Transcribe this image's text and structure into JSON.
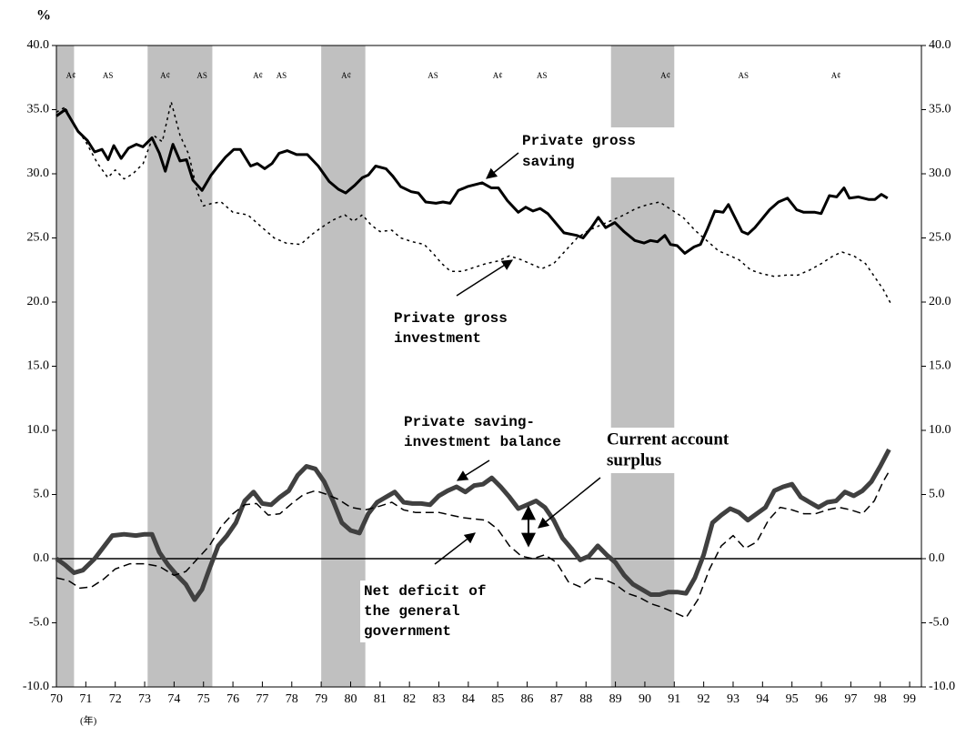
{
  "chart_data": {
    "type": "line",
    "y_unit": "%",
    "x_unit": "(年)",
    "xlim": [
      70,
      99.4
    ],
    "xticks": [
      70,
      71,
      72,
      73,
      74,
      75,
      76,
      77,
      78,
      79,
      80,
      81,
      82,
      83,
      84,
      85,
      86,
      87,
      88,
      89,
      90,
      91,
      92,
      93,
      94,
      95,
      96,
      97,
      98,
      99
    ],
    "ylim": [
      -10,
      40
    ],
    "yticks": [
      {
        "value": -10,
        "label": "-10.0"
      },
      {
        "value": -5,
        "label": "-5.0"
      },
      {
        "value": 0,
        "label": "0.0"
      },
      {
        "value": 5,
        "label": "5.0"
      },
      {
        "value": 10,
        "label": "10.0"
      },
      {
        "value": 15,
        "label": "15.0"
      },
      {
        "value": 20,
        "label": "20.0"
      },
      {
        "value": 25,
        "label": "25.0"
      },
      {
        "value": 30,
        "label": "30.0"
      },
      {
        "value": 35,
        "label": "35.0"
      },
      {
        "value": 40,
        "label": "40.0"
      }
    ],
    "right_axis": true,
    "shaded_periods": [
      [
        70,
        70.6
      ],
      [
        73.1,
        75.3
      ],
      [
        79.0,
        80.5
      ],
      [
        88.85,
        91.0
      ]
    ],
    "shade_color": "#c0c0c0",
    "cycle_labels": [
      {
        "x": 70.5,
        "label": "A¢"
      },
      {
        "x": 71.75,
        "label": "AS"
      },
      {
        "x": 73.7,
        "label": "A¢"
      },
      {
        "x": 74.95,
        "label": "AS"
      },
      {
        "x": 76.85,
        "label": "A¢"
      },
      {
        "x": 77.65,
        "label": "AS"
      },
      {
        "x": 79.85,
        "label": "A¢"
      },
      {
        "x": 82.8,
        "label": "AS"
      },
      {
        "x": 85.0,
        "label": "A¢"
      },
      {
        "x": 86.5,
        "label": "AS"
      },
      {
        "x": 90.7,
        "label": "A¢"
      },
      {
        "x": 93.35,
        "label": "AS"
      },
      {
        "x": 96.5,
        "label": "A¢"
      }
    ],
    "annotations": [
      [
        "Private gross",
        "saving"
      ],
      [
        "Private gross",
        "investment"
      ],
      [
        "Private saving-",
        "investment balance"
      ],
      [
        "Current account",
        "surplus"
      ],
      [
        "Net deficit of",
        "the general",
        "government"
      ]
    ],
    "series": [
      {
        "name": "Private gross saving",
        "color": "#000000",
        "line_style": "solid",
        "line_width": 3,
        "x": [
          70.0,
          70.3,
          70.74,
          71.05,
          71.3,
          71.55,
          71.76,
          71.95,
          72.2,
          72.45,
          72.72,
          72.94,
          73.25,
          73.5,
          73.7,
          73.96,
          74.2,
          74.42,
          74.64,
          74.95,
          75.26,
          75.5,
          75.75,
          76.03,
          76.25,
          76.6,
          76.83,
          77.08,
          77.33,
          77.57,
          77.85,
          78.16,
          78.53,
          78.9,
          79.27,
          79.58,
          79.83,
          80.14,
          80.4,
          80.6,
          80.85,
          81.2,
          81.44,
          81.7,
          82.06,
          82.3,
          82.55,
          82.9,
          83.14,
          83.38,
          83.66,
          83.97,
          84.47,
          84.78,
          85.02,
          85.33,
          85.7,
          85.95,
          86.2,
          86.44,
          86.7,
          87.25,
          87.68,
          87.9,
          88.18,
          88.42,
          88.67,
          88.98,
          89.29,
          89.66,
          89.97,
          90.19,
          90.43,
          90.68,
          90.87,
          91.1,
          91.36,
          91.67,
          91.89,
          92.13,
          92.38,
          92.66,
          92.84,
          93.3,
          93.5,
          93.74,
          94.24,
          94.54,
          94.85,
          95.16,
          95.4,
          95.78,
          95.99,
          96.27,
          96.52,
          96.77,
          96.95,
          97.26,
          97.6,
          97.82,
          98.04,
          98.25
        ],
        "values": [
          34.5,
          35.0,
          33.3,
          32.6,
          31.7,
          31.9,
          31.1,
          32.2,
          31.2,
          32.0,
          32.3,
          32.1,
          32.8,
          31.6,
          30.2,
          32.3,
          31.0,
          31.1,
          29.5,
          28.7,
          29.9,
          30.6,
          31.3,
          31.9,
          31.9,
          30.6,
          30.8,
          30.4,
          30.8,
          31.6,
          31.8,
          31.5,
          31.5,
          30.6,
          29.4,
          28.8,
          28.5,
          29.1,
          29.7,
          29.9,
          30.6,
          30.4,
          29.8,
          29.0,
          28.6,
          28.5,
          27.8,
          27.7,
          27.8,
          27.7,
          28.7,
          29.0,
          29.3,
          28.9,
          28.9,
          27.9,
          27.0,
          27.4,
          27.1,
          27.3,
          26.9,
          25.4,
          25.2,
          25.0,
          25.8,
          26.6,
          25.8,
          26.2,
          25.5,
          24.8,
          24.6,
          24.8,
          24.7,
          25.2,
          24.5,
          24.4,
          23.8,
          24.3,
          24.5,
          25.7,
          27.1,
          27.0,
          27.6,
          25.5,
          25.3,
          25.8,
          27.2,
          27.8,
          28.1,
          27.2,
          27.0,
          27.0,
          26.9,
          28.3,
          28.2,
          28.9,
          28.1,
          28.2,
          28.0,
          28.0,
          28.4,
          28.1
        ]
      },
      {
        "name": "Private gross investment",
        "color": "#000000",
        "line_style": "dotted",
        "line_width": 1.5,
        "x": [
          70.0,
          70.3,
          70.6,
          71.0,
          71.4,
          71.75,
          72.0,
          72.3,
          72.6,
          72.95,
          73.3,
          73.6,
          73.9,
          74.2,
          74.5,
          74.8,
          75.0,
          75.3,
          75.6,
          76.0,
          76.5,
          77.0,
          77.4,
          77.8,
          78.3,
          78.7,
          79.0,
          79.4,
          79.8,
          80.1,
          80.4,
          80.7,
          81.0,
          81.4,
          81.7,
          82.1,
          82.5,
          82.8,
          83.1,
          83.4,
          83.8,
          84.2,
          84.6,
          85.0,
          85.4,
          85.8,
          86.2,
          86.5,
          86.9,
          87.3,
          87.7,
          88.1,
          88.5,
          88.9,
          89.3,
          89.7,
          90.1,
          90.5,
          90.9,
          91.3,
          91.7,
          92.1,
          92.5,
          92.9,
          93.2,
          93.6,
          94.0,
          94.4,
          94.8,
          95.2,
          95.6,
          96.0,
          96.4,
          96.7,
          97.1,
          97.5,
          97.8,
          98.1,
          98.4
        ],
        "values": [
          34.8,
          35.2,
          33.8,
          32.5,
          30.8,
          29.7,
          30.3,
          29.6,
          30.0,
          30.8,
          33.0,
          32.5,
          35.6,
          33.0,
          31.5,
          28.5,
          27.5,
          27.7,
          27.8,
          27.0,
          26.8,
          25.8,
          25.0,
          24.6,
          24.5,
          25.3,
          25.8,
          26.4,
          26.8,
          26.3,
          26.8,
          26.0,
          25.5,
          25.6,
          25.0,
          24.7,
          24.5,
          23.8,
          23.0,
          22.4,
          22.4,
          22.7,
          23.0,
          23.2,
          23.6,
          23.3,
          22.9,
          22.6,
          23.0,
          24.0,
          25.0,
          25.6,
          26.0,
          26.4,
          26.8,
          27.3,
          27.6,
          27.8,
          27.2,
          26.6,
          25.6,
          24.8,
          24.0,
          23.6,
          23.3,
          22.5,
          22.2,
          22.0,
          22.1,
          22.1,
          22.5,
          23.0,
          23.6,
          23.9,
          23.6,
          23.0,
          22.0,
          21.0,
          19.7
        ]
      },
      {
        "name": "Private saving-investment balance",
        "color": "#404040",
        "line_style": "solid",
        "line_width": 5,
        "x": [
          70.0,
          70.3,
          70.6,
          70.9,
          71.3,
          71.6,
          71.9,
          72.3,
          72.7,
          73.0,
          73.25,
          73.5,
          73.8,
          74.1,
          74.4,
          74.7,
          74.95,
          75.2,
          75.5,
          75.8,
          76.1,
          76.4,
          76.7,
          77.0,
          77.3,
          77.6,
          77.9,
          78.2,
          78.5,
          78.8,
          79.1,
          79.4,
          79.7,
          80.0,
          80.3,
          80.6,
          80.9,
          81.2,
          81.5,
          81.8,
          82.1,
          82.4,
          82.7,
          83.0,
          83.3,
          83.6,
          83.9,
          84.2,
          84.5,
          84.8,
          85.1,
          85.4,
          85.7,
          86.0,
          86.3,
          86.6,
          86.9,
          87.2,
          87.5,
          87.8,
          88.1,
          88.4,
          88.7,
          89.0,
          89.3,
          89.6,
          89.9,
          90.2,
          90.5,
          90.8,
          91.1,
          91.4,
          91.7,
          92.0,
          92.3,
          92.6,
          92.9,
          93.2,
          93.5,
          93.8,
          94.1,
          94.4,
          94.7,
          95.0,
          95.3,
          95.6,
          95.9,
          96.2,
          96.5,
          96.8,
          97.1,
          97.4,
          97.7,
          98.0,
          98.3
        ],
        "values": [
          0.0,
          -0.5,
          -1.1,
          -0.9,
          0.0,
          0.9,
          1.8,
          1.9,
          1.8,
          1.9,
          1.9,
          0.5,
          -0.5,
          -1.3,
          -2.0,
          -3.2,
          -2.4,
          -0.8,
          1.0,
          1.8,
          2.8,
          4.5,
          5.2,
          4.3,
          4.2,
          4.8,
          5.3,
          6.5,
          7.2,
          7.0,
          6.0,
          4.5,
          2.8,
          2.2,
          2.0,
          3.5,
          4.4,
          4.8,
          5.2,
          4.4,
          4.3,
          4.3,
          4.2,
          4.9,
          5.3,
          5.6,
          5.2,
          5.7,
          5.8,
          6.3,
          5.6,
          4.8,
          3.9,
          4.2,
          4.5,
          4.0,
          3.0,
          1.6,
          0.8,
          -0.1,
          0.2,
          1.0,
          0.3,
          -0.3,
          -1.3,
          -2.0,
          -2.4,
          -2.8,
          -2.8,
          -2.6,
          -2.6,
          -2.7,
          -1.5,
          0.3,
          2.8,
          3.4,
          3.9,
          3.6,
          3.0,
          3.5,
          4.0,
          5.3,
          5.6,
          5.8,
          4.8,
          4.4,
          4.0,
          4.4,
          4.5,
          5.2,
          4.9,
          5.3,
          6.0,
          7.2,
          8.5
        ]
      },
      {
        "name": "Net deficit of the general government",
        "color": "#000000",
        "line_style": "dashed",
        "line_width": 1.5,
        "x": [
          70.0,
          70.4,
          70.8,
          71.2,
          71.6,
          72.0,
          72.5,
          73.0,
          73.5,
          74.0,
          74.4,
          74.8,
          75.2,
          75.6,
          76.0,
          76.4,
          76.8,
          77.2,
          77.6,
          78.0,
          78.4,
          78.8,
          79.2,
          79.6,
          80.0,
          80.5,
          81.0,
          81.4,
          81.8,
          82.2,
          82.6,
          83.0,
          83.4,
          83.8,
          84.2,
          84.6,
          85.0,
          85.4,
          85.8,
          86.2,
          86.6,
          87.0,
          87.4,
          87.8,
          88.2,
          88.6,
          89.0,
          89.4,
          89.8,
          90.2,
          90.6,
          91.0,
          91.4,
          91.8,
          92.2,
          92.6,
          93.0,
          93.4,
          93.8,
          94.2,
          94.6,
          95.0,
          95.4,
          95.8,
          96.2,
          96.6,
          97.0,
          97.4,
          97.8,
          98.1,
          98.3
        ],
        "values": [
          -1.5,
          -1.7,
          -2.3,
          -2.2,
          -1.6,
          -0.8,
          -0.4,
          -0.4,
          -0.6,
          -1.3,
          -1.0,
          0.0,
          1.0,
          2.5,
          3.5,
          4.2,
          4.3,
          3.4,
          3.5,
          4.3,
          5.0,
          5.3,
          5.0,
          4.6,
          4.0,
          3.8,
          4.1,
          4.4,
          3.8,
          3.6,
          3.6,
          3.6,
          3.4,
          3.2,
          3.1,
          3.0,
          2.3,
          1.0,
          0.2,
          0.0,
          0.3,
          -0.3,
          -1.8,
          -2.2,
          -1.5,
          -1.6,
          -2.0,
          -2.7,
          -3.0,
          -3.5,
          -3.8,
          -4.2,
          -4.6,
          -3.2,
          -0.8,
          1.0,
          1.8,
          0.8,
          1.3,
          3.0,
          4.0,
          3.8,
          3.5,
          3.5,
          3.8,
          4.0,
          3.8,
          3.5,
          4.5,
          6.0,
          6.8
        ]
      }
    ]
  }
}
